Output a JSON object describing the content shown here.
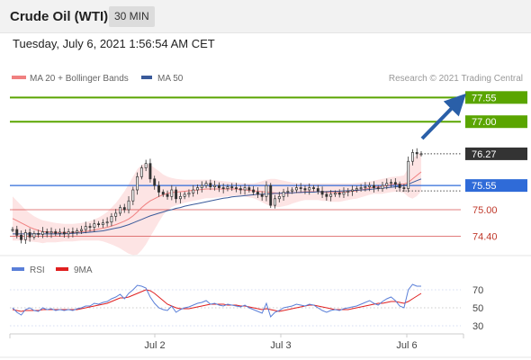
{
  "header": {
    "title": "Crude Oil (WTI)",
    "timeframe": "30 MIN",
    "timestamp": "Tuesday, July 6, 2021 1:56:54 AM CET"
  },
  "copyright": "Research © 2021 Trading Central",
  "colors": {
    "resistance": "#5aa500",
    "support": "#d75050",
    "pivot": "#2f6bd8",
    "current": "#333333",
    "arrow": "#2a5fa8",
    "bollinger_fill": "#fde4e4",
    "ma20": "#f08080",
    "ma50": "#3a5a9a",
    "rsi": "#5a7fd8",
    "rsi_ma": "#e02020"
  },
  "chart_data": [
    {
      "type": "candlestick",
      "legend": [
        {
          "name": "MA 20 + Bollinger Bands",
          "color": "#f08080"
        },
        {
          "name": "MA 50",
          "color": "#3a5a9a"
        }
      ],
      "x_ticks": [
        "Jul 2",
        "Jul 3",
        "Jul 6"
      ],
      "ylim": [
        74.08,
        77.72
      ],
      "levels": [
        {
          "value": 77.55,
          "label": "77.55",
          "kind": "resistance"
        },
        {
          "value": 77.0,
          "label": "77.00",
          "kind": "resistance"
        },
        {
          "value": 76.27,
          "label": "76.27",
          "kind": "current"
        },
        {
          "value": 75.55,
          "label": "75.55",
          "kind": "pivot"
        },
        {
          "value": 75.0,
          "label": "75.00",
          "kind": "support"
        },
        {
          "value": 74.4,
          "label": "74.40",
          "kind": "support"
        }
      ],
      "close": [
        74.55,
        74.42,
        74.32,
        74.48,
        74.38,
        74.46,
        74.44,
        74.5,
        74.47,
        74.5,
        74.46,
        74.49,
        74.45,
        74.5,
        74.48,
        74.52,
        74.55,
        74.62,
        74.6,
        74.68,
        74.66,
        74.7,
        74.72,
        74.85,
        74.92,
        75.05,
        75.0,
        75.2,
        75.45,
        75.75,
        75.95,
        76.05,
        75.7,
        75.55,
        75.4,
        75.35,
        75.3,
        75.45,
        75.25,
        75.3,
        75.35,
        75.38,
        75.45,
        75.5,
        75.55,
        75.6,
        75.52,
        75.55,
        75.5,
        75.48,
        75.52,
        75.5,
        75.48,
        75.45,
        75.5,
        75.45,
        75.4,
        75.35,
        75.3,
        75.55,
        75.1,
        75.25,
        75.3,
        75.4,
        75.42,
        75.45,
        75.5,
        75.48,
        75.45,
        75.5,
        75.48,
        75.42,
        75.35,
        75.3,
        75.35,
        75.38,
        75.35,
        75.4,
        75.42,
        75.45,
        75.48,
        75.5,
        75.52,
        75.55,
        75.5,
        75.48,
        75.55,
        75.6,
        75.62,
        75.58,
        75.5,
        75.48,
        76.1,
        76.3,
        76.27,
        76.27
      ],
      "ma20": [
        74.8,
        74.75,
        74.7,
        74.65,
        74.6,
        74.56,
        74.53,
        74.5,
        74.5,
        74.49,
        74.48,
        74.48,
        74.48,
        74.48,
        74.48,
        74.49,
        74.5,
        74.51,
        74.52,
        74.54,
        74.56,
        74.58,
        74.6,
        74.63,
        74.66,
        74.7,
        74.74,
        74.79,
        74.86,
        74.95,
        75.05,
        75.13,
        75.2,
        75.25,
        75.3,
        75.34,
        75.37,
        75.39,
        75.4,
        75.41,
        75.42,
        75.43,
        75.44,
        75.45,
        75.46,
        75.47,
        75.47,
        75.47,
        75.47,
        75.47,
        75.47,
        75.47,
        75.47,
        75.46,
        75.45,
        75.44,
        75.43,
        75.42,
        75.41,
        75.4,
        75.39,
        75.38,
        75.37,
        75.37,
        75.37,
        75.38,
        75.39,
        75.4,
        75.41,
        75.41,
        75.41,
        75.41,
        75.4,
        75.4,
        75.39,
        75.39,
        75.39,
        75.4,
        75.41,
        75.42,
        75.43,
        75.45,
        75.47,
        75.49,
        75.51,
        75.52,
        75.53,
        75.55,
        75.57,
        75.58,
        75.58,
        75.58,
        75.62,
        75.7,
        75.78,
        75.86
      ],
      "bb_upper": [
        75.3,
        75.2,
        75.1,
        75.0,
        74.92,
        74.85,
        74.8,
        74.76,
        74.74,
        74.72,
        74.7,
        74.69,
        74.68,
        74.68,
        74.68,
        74.69,
        74.7,
        74.72,
        74.74,
        74.78,
        74.82,
        74.88,
        74.95,
        75.05,
        75.15,
        75.28,
        75.42,
        75.58,
        75.75,
        75.92,
        76.02,
        76.05,
        76.02,
        75.95,
        75.88,
        75.8,
        75.75,
        75.72,
        75.7,
        75.69,
        75.68,
        75.68,
        75.68,
        75.68,
        75.68,
        75.68,
        75.68,
        75.67,
        75.66,
        75.65,
        75.64,
        75.63,
        75.62,
        75.61,
        75.6,
        75.6,
        75.6,
        75.62,
        75.65,
        75.68,
        75.7,
        75.7,
        75.68,
        75.66,
        75.64,
        75.62,
        75.61,
        75.6,
        75.6,
        75.6,
        75.6,
        75.6,
        75.6,
        75.6,
        75.6,
        75.6,
        75.6,
        75.6,
        75.6,
        75.6,
        75.61,
        75.62,
        75.63,
        75.64,
        75.66,
        75.68,
        75.7,
        75.72,
        75.74,
        75.75,
        75.76,
        75.78,
        75.95,
        76.15,
        76.25,
        76.3
      ],
      "bb_lower": [
        74.3,
        74.3,
        74.3,
        74.3,
        74.28,
        74.27,
        74.26,
        74.24,
        74.26,
        74.26,
        74.26,
        74.27,
        74.28,
        74.28,
        74.28,
        74.29,
        74.3,
        74.3,
        74.3,
        74.3,
        74.3,
        74.28,
        74.25,
        74.21,
        74.17,
        74.12,
        74.06,
        74.0,
        73.97,
        73.98,
        74.08,
        74.21,
        74.38,
        74.55,
        74.72,
        74.88,
        74.99,
        75.06,
        75.1,
        75.13,
        75.16,
        75.18,
        75.2,
        75.22,
        75.24,
        75.26,
        75.26,
        75.27,
        75.28,
        75.29,
        75.3,
        75.31,
        75.32,
        75.31,
        75.3,
        75.28,
        75.26,
        75.22,
        75.17,
        75.12,
        75.08,
        75.06,
        75.06,
        75.08,
        75.1,
        75.14,
        75.17,
        75.2,
        75.22,
        75.22,
        75.22,
        75.22,
        75.2,
        75.2,
        75.18,
        75.18,
        75.18,
        75.2,
        75.22,
        75.24,
        75.25,
        75.28,
        75.31,
        75.34,
        75.36,
        75.36,
        75.36,
        75.38,
        75.4,
        75.41,
        75.4,
        75.38,
        75.29,
        75.25,
        75.31,
        75.42
      ],
      "ma50": [
        74.45,
        74.45,
        74.45,
        74.45,
        74.45,
        74.45,
        74.45,
        74.45,
        74.45,
        74.45,
        74.45,
        74.45,
        74.45,
        74.46,
        74.46,
        74.47,
        74.47,
        74.48,
        74.49,
        74.5,
        74.51,
        74.52,
        74.54,
        74.56,
        74.58,
        74.6,
        74.63,
        74.66,
        74.7,
        74.74,
        74.78,
        74.82,
        74.86,
        74.89,
        74.92,
        74.95,
        74.98,
        75.0,
        75.03,
        75.05,
        75.08,
        75.1,
        75.12,
        75.14,
        75.16,
        75.18,
        75.2,
        75.22,
        75.24,
        75.26,
        75.27,
        75.29,
        75.3,
        75.31,
        75.32,
        75.33,
        75.34,
        75.35,
        75.35,
        75.36,
        75.36,
        75.37,
        75.37,
        75.38,
        75.38,
        75.38,
        75.39,
        75.39,
        75.4,
        75.4,
        75.4,
        75.41,
        75.41,
        75.41,
        75.42,
        75.42,
        75.42,
        75.43,
        75.43,
        75.44,
        75.44,
        75.45,
        75.45,
        75.46,
        75.47,
        75.48,
        75.49,
        75.5,
        75.51,
        75.52,
        75.53,
        75.55,
        75.58,
        75.62,
        75.66,
        75.7
      ]
    },
    {
      "type": "line",
      "legend": [
        {
          "name": "RSI",
          "color": "#5a7fd8"
        },
        {
          "name": "9MA",
          "color": "#e02020"
        }
      ],
      "ylim": [
        20,
        80
      ],
      "y_ticks": [
        70,
        50,
        30
      ],
      "rsi": [
        50,
        45,
        42,
        48,
        50,
        47,
        46,
        50,
        48,
        49,
        47,
        48,
        47,
        48,
        47,
        49,
        50,
        52,
        52,
        55,
        54,
        56,
        57,
        60,
        62,
        65,
        60,
        66,
        70,
        75,
        74,
        72,
        62,
        55,
        50,
        48,
        47,
        52,
        45,
        48,
        50,
        51,
        53,
        55,
        56,
        58,
        54,
        55,
        53,
        52,
        54,
        53,
        52,
        51,
        53,
        50,
        48,
        46,
        44,
        55,
        40,
        45,
        47,
        50,
        51,
        52,
        54,
        53,
        52,
        54,
        53,
        50,
        47,
        45,
        47,
        48,
        47,
        49,
        50,
        51,
        52,
        54,
        56,
        58,
        55,
        53,
        57,
        60,
        62,
        58,
        52,
        50,
        70,
        76,
        74,
        74
      ],
      "rsi_ma": [
        48,
        47,
        46,
        47,
        47,
        47,
        47,
        48,
        48,
        48,
        48,
        48,
        48,
        48,
        48,
        48,
        49,
        50,
        51,
        52,
        53,
        54,
        55,
        57,
        59,
        61,
        61,
        62,
        64,
        66,
        68,
        70,
        69,
        66,
        62,
        58,
        54,
        52,
        50,
        49,
        49,
        49,
        50,
        51,
        52,
        53,
        54,
        54,
        54,
        54,
        53,
        53,
        53,
        52,
        52,
        51,
        50,
        49,
        48,
        49,
        48,
        47,
        46,
        47,
        48,
        49,
        50,
        51,
        52,
        53,
        53,
        52,
        51,
        50,
        49,
        48,
        48,
        48,
        48,
        49,
        50,
        51,
        52,
        53,
        54,
        55,
        55,
        56,
        57,
        57,
        56,
        55,
        57,
        60,
        63,
        66
      ]
    }
  ]
}
